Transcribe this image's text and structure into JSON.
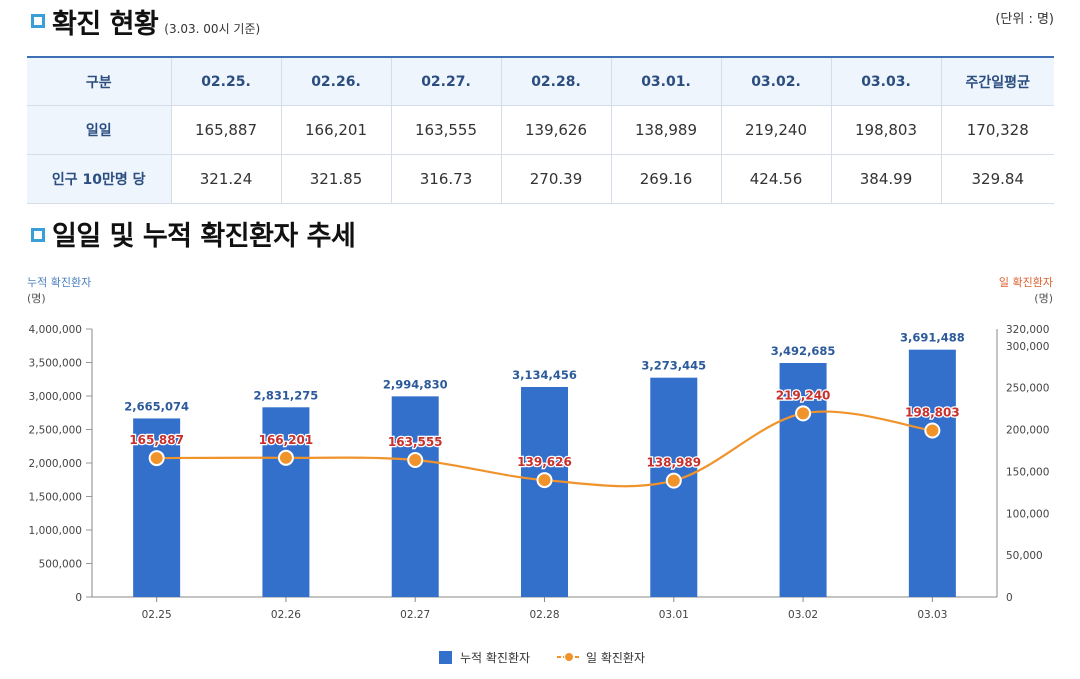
{
  "section1": {
    "title": "확진 현황",
    "subtitle": "(3.03. 00시 기준)",
    "unit": "(단위 : 명)"
  },
  "table": {
    "headers": [
      "구분",
      "02.25.",
      "02.26.",
      "02.27.",
      "02.28.",
      "03.01.",
      "03.02.",
      "03.03.",
      "주간일평균"
    ],
    "rows": [
      {
        "label": "일일",
        "values": [
          "165,887",
          "166,201",
          "163,555",
          "139,626",
          "138,989",
          "219,240",
          "198,803",
          "170,328"
        ]
      },
      {
        "label": "인구 10만명 당",
        "values": [
          "321.24",
          "321.85",
          "316.73",
          "270.39",
          "269.16",
          "424.56",
          "384.99",
          "329.84"
        ]
      }
    ]
  },
  "section2": {
    "title": "일일 및 누적 확진환자 추세"
  },
  "colors": {
    "bar": "#3370cc",
    "line": "#f0932b",
    "cumLabel": "#2c5a9a",
    "dailyLabel": "#c9302c"
  },
  "chart_data": {
    "type": "bar",
    "categories": [
      "02.25",
      "02.26",
      "02.27",
      "02.28",
      "03.01",
      "03.02",
      "03.03"
    ],
    "series": [
      {
        "name": "누적 확진환자",
        "type": "bar",
        "axis": "left",
        "values": [
          2665074,
          2831275,
          2994830,
          3134456,
          3273445,
          3492685,
          3691488
        ],
        "labels": [
          "2,665,074",
          "2,831,275",
          "2,994,830",
          "3,134,456",
          "3,273,445",
          "3,492,685",
          "3,691,488"
        ]
      },
      {
        "name": "일 확진환자",
        "type": "line",
        "axis": "right",
        "values": [
          165887,
          166201,
          163555,
          139626,
          138989,
          219240,
          198803
        ],
        "labels": [
          "165,887",
          "166,201",
          "163,555",
          "139,626",
          "138,989",
          "219,240",
          "198,803"
        ]
      }
    ],
    "left_axis": {
      "title": "누적 확진환자",
      "unit": "(명)",
      "range": [
        0,
        4000000
      ],
      "ticks": [
        0,
        500000,
        1000000,
        1500000,
        2000000,
        2500000,
        3000000,
        3500000,
        4000000
      ],
      "tick_labels": [
        "0",
        "500,000",
        "1,000,000",
        "1,500,000",
        "2,000,000",
        "2,500,000",
        "3,000,000",
        "3,500,000",
        "4,000,000"
      ]
    },
    "right_axis": {
      "title": "일 확진환자",
      "unit": "(명)",
      "range": [
        0,
        320000
      ],
      "ticks": [
        0,
        50000,
        100000,
        150000,
        200000,
        250000,
        300000,
        320000
      ],
      "tick_labels": [
        "0",
        "50,000",
        "100,000",
        "150,000",
        "200,000",
        "250,000",
        "300,000",
        "320,000"
      ]
    },
    "legend": {
      "position": "bottom",
      "items": [
        "누적 확진환자",
        "일 확진환자"
      ]
    }
  }
}
